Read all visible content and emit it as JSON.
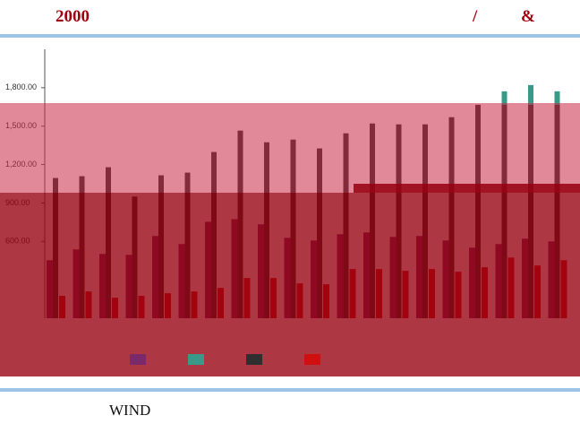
{
  "header": {
    "left": "2000",
    "middle": "/",
    "right": "&"
  },
  "footer": {
    "label": "WIND"
  },
  "chart_data": {
    "type": "bar",
    "categories": [
      null,
      null,
      null,
      null,
      null,
      null,
      null,
      null,
      null,
      null,
      null,
      null,
      null,
      null,
      null,
      null,
      null,
      null,
      null,
      null
    ],
    "series": [
      {
        "color": "#7a2a6a",
        "values": [
          453,
          537,
          502,
          495,
          642,
          579,
          753,
          774,
          733,
          628,
          607,
          656,
          670,
          635,
          642,
          607,
          551,
          579,
          621,
          600
        ]
      },
      {
        "color": "#3a9a8a",
        "values": [
          null,
          null,
          null,
          null,
          null,
          null,
          null,
          null,
          null,
          null,
          null,
          null,
          null,
          null,
          null,
          null,
          null,
          1772,
          1821,
          1772
        ]
      },
      {
        "color": "#2f2f2f",
        "values": [
          1095,
          1109,
          1179,
          950,
          1116,
          1137,
          1298,
          1465,
          1374,
          1395,
          1326,
          1444,
          1521,
          1514,
          1514,
          1570,
          1667,
          1667,
          1667,
          1667
        ]
      },
      {
        "color": "#d01010",
        "values": [
          175,
          209,
          160,
          175,
          195,
          209,
          237,
          314,
          314,
          272,
          265,
          384,
          384,
          370,
          384,
          363,
          398,
          474,
          412,
          453
        ]
      }
    ],
    "ylim": [
      0,
      2100
    ],
    "yticks": [
      {
        "value": 600,
        "label": "600.00"
      },
      {
        "value": 900,
        "label": "900.00"
      },
      {
        "value": 1200,
        "label": "1,200.00"
      },
      {
        "value": 1500,
        "label": "1,500.00"
      },
      {
        "value": 1800,
        "label": "1,800.00"
      }
    ],
    "grid": false
  }
}
